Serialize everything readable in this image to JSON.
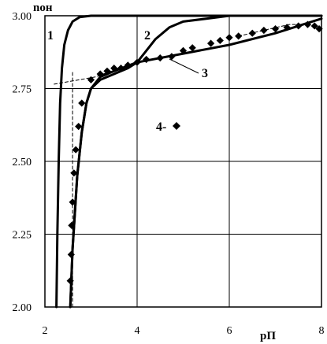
{
  "chart_data": {
    "type": "line",
    "title": "",
    "xlabel": "pП",
    "ylabel": "nон",
    "xlim": [
      2,
      8
    ],
    "ylim": [
      2.0,
      3.0
    ],
    "x_ticks": [
      "2",
      "4",
      "6",
      "8"
    ],
    "y_ticks": [
      "2.00",
      "2.25",
      "2.50",
      "2.75",
      "3.00"
    ],
    "grid": true,
    "series": [
      {
        "name": "1",
        "style": "solid",
        "x": [
          2.25,
          2.27,
          2.3,
          2.33,
          2.37,
          2.42,
          2.5,
          2.6,
          2.75,
          3.0,
          3.5,
          8.0
        ],
        "y": [
          2.0,
          2.25,
          2.5,
          2.7,
          2.82,
          2.9,
          2.95,
          2.98,
          2.995,
          3.0,
          3.0,
          3.0
        ]
      },
      {
        "name": "2",
        "style": "solid",
        "x": [
          2.55,
          2.6,
          2.7,
          2.8,
          2.9,
          3.0,
          3.2,
          3.5,
          3.8,
          4.0,
          4.2,
          4.4,
          4.7,
          5.0,
          5.5,
          6.0,
          8.0
        ],
        "y": [
          2.0,
          2.2,
          2.45,
          2.6,
          2.7,
          2.75,
          2.78,
          2.8,
          2.82,
          2.84,
          2.88,
          2.92,
          2.96,
          2.98,
          2.99,
          3.0,
          3.0
        ]
      },
      {
        "name": "3",
        "style": "solid",
        "x": [
          2.55,
          2.6,
          2.7,
          2.8,
          2.9,
          3.0,
          3.2,
          3.5,
          4.0,
          5.0,
          6.0,
          7.0,
          8.0
        ],
        "y": [
          2.0,
          2.2,
          2.45,
          2.6,
          2.7,
          2.75,
          2.79,
          2.81,
          2.84,
          2.87,
          2.9,
          2.94,
          2.99
        ]
      },
      {
        "name": "4",
        "style": "markers",
        "x": [
          2.55,
          2.57,
          2.58,
          2.6,
          2.63,
          2.67,
          2.73,
          2.8,
          3.0,
          3.2,
          3.35,
          3.5,
          3.65,
          3.8,
          4.0,
          4.2,
          4.5,
          4.75,
          5.0,
          5.2,
          5.6,
          5.8,
          6.0,
          6.2,
          6.5,
          6.75,
          7.0,
          7.25,
          7.5,
          7.7,
          7.85,
          7.95
        ],
        "y": [
          2.09,
          2.18,
          2.28,
          2.36,
          2.46,
          2.54,
          2.62,
          2.7,
          2.78,
          2.8,
          2.81,
          2.82,
          2.82,
          2.83,
          2.84,
          2.85,
          2.855,
          2.86,
          2.88,
          2.89,
          2.905,
          2.915,
          2.925,
          2.93,
          2.94,
          2.95,
          2.955,
          2.96,
          2.965,
          2.97,
          2.965,
          2.955
        ]
      },
      {
        "name": "",
        "style": "dashed",
        "x": [
          2.6,
          2.6
        ],
        "y": [
          2.0,
          2.81
        ]
      },
      {
        "name": "",
        "style": "dashed",
        "x": [
          2.2,
          3.1,
          3.6
        ],
        "y": [
          2.765,
          2.79,
          2.82
        ]
      },
      {
        "name": "",
        "style": "dashed",
        "x": [
          6.2,
          7.3,
          7.6
        ],
        "y": [
          2.93,
          2.97,
          2.97
        ]
      }
    ],
    "curve_labels": [
      "1",
      "2",
      "3",
      "4-"
    ],
    "legend_marker": "diamond"
  }
}
